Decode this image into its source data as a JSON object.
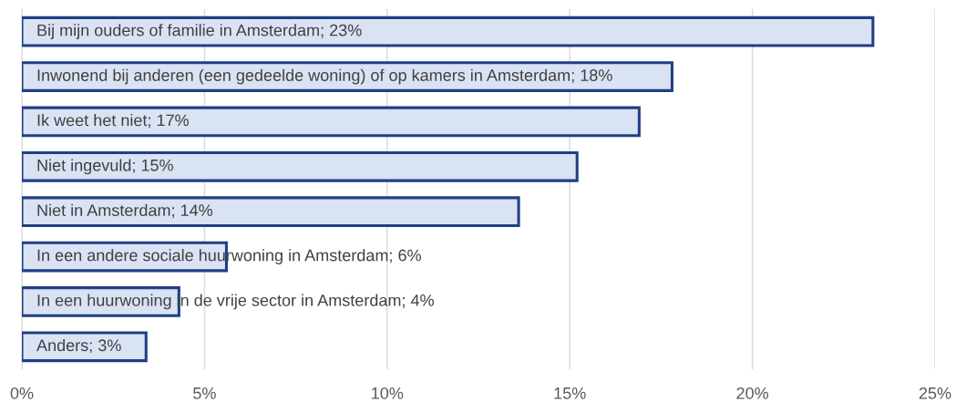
{
  "chart_data": {
    "type": "bar",
    "orientation": "horizontal",
    "categories": [
      "Bij mijn ouders of familie in Amsterdam; 23%",
      "Inwonend bij anderen (een gedeelde woning) of op kamers in Amsterdam; 18%",
      "Ik weet het niet; 17%",
      "Niet ingevuld; 15%",
      "Niet in Amsterdam; 14%",
      "In een andere sociale huurwoning in Amsterdam; 6%",
      "In een huurwoning in de vrije sector in Amsterdam; 4%",
      "Anders; 3%"
    ],
    "values": [
      23.3,
      17.8,
      16.9,
      15.2,
      13.6,
      5.6,
      4.3,
      3.4
    ],
    "color": "#dae3f3",
    "xlim": [
      0,
      25
    ],
    "xticks": [
      {
        "value": 0,
        "label": "0%"
      },
      {
        "value": 5,
        "label": "5%"
      },
      {
        "value": 10,
        "label": "10%"
      },
      {
        "value": 15,
        "label": "15%"
      },
      {
        "value": 20,
        "label": "20%"
      },
      {
        "value": 25,
        "label": "25%"
      }
    ],
    "grid": "x"
  }
}
